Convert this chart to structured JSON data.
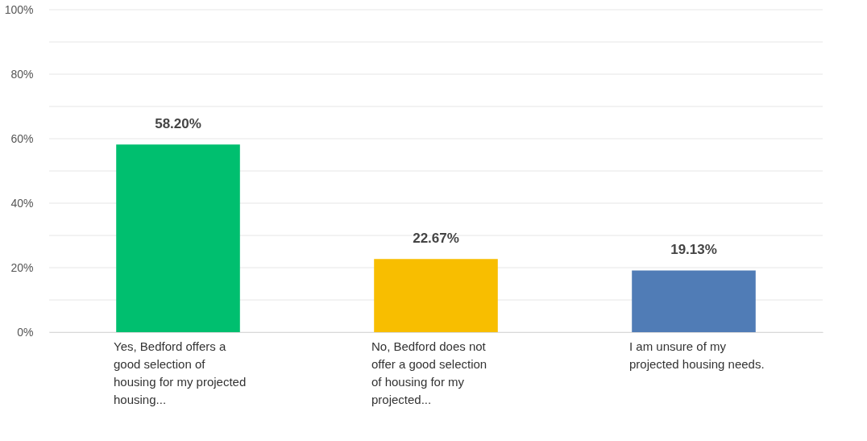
{
  "chart_data": {
    "type": "bar",
    "categories": [
      "Yes, Bedford offers a good selection of housing for my projected housing...",
      "No, Bedford does not offer a good selection of housing for my projected...",
      "I am unsure of my projected housing needs."
    ],
    "values": [
      58.2,
      22.67,
      19.13
    ],
    "colors": [
      "#00bf6f",
      "#f8be00",
      "#507cb6"
    ],
    "value_labels": [
      "58.20%",
      "22.67%",
      "19.13%"
    ],
    "ylim": [
      0,
      100
    ],
    "yticks": [
      {
        "value": 0,
        "label": "0%"
      },
      {
        "value": 10,
        "label": null
      },
      {
        "value": 20,
        "label": "20%"
      },
      {
        "value": 30,
        "label": null
      },
      {
        "value": 40,
        "label": "40%"
      },
      {
        "value": 50,
        "label": null
      },
      {
        "value": 60,
        "label": "60%"
      },
      {
        "value": 70,
        "label": null
      },
      {
        "value": 80,
        "label": "80%"
      },
      {
        "value": 90,
        "label": null
      },
      {
        "value": 100,
        "label": "100%"
      }
    ],
    "grid": true
  }
}
